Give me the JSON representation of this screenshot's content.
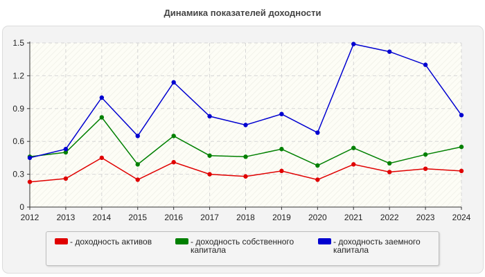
{
  "chart_data": {
    "type": "line",
    "title": "Динамика показателей доходности",
    "x": [
      "2012",
      "2013",
      "2014",
      "2015",
      "2016",
      "2017",
      "2018",
      "2019",
      "2020",
      "2021",
      "2022",
      "2023",
      "2024"
    ],
    "ylim": [
      0,
      1.5
    ],
    "yticks": [
      "0",
      "0.3",
      "0.6",
      "0.9",
      "1.2",
      "1.5"
    ],
    "grid": true,
    "legend_position": "bottom",
    "series": [
      {
        "name": "- доходность активов",
        "color": "#e00000",
        "values": [
          0.23,
          0.26,
          0.45,
          0.25,
          0.41,
          0.3,
          0.28,
          0.33,
          0.25,
          0.39,
          0.32,
          0.35,
          0.33
        ]
      },
      {
        "name": "- доходность собственного\nкапитала",
        "color": "#008000",
        "values": [
          0.46,
          0.5,
          0.82,
          0.39,
          0.65,
          0.47,
          0.46,
          0.53,
          0.38,
          0.54,
          0.4,
          0.48,
          0.55
        ]
      },
      {
        "name": "- доходность заемного\nкапитала",
        "color": "#0000d0",
        "values": [
          0.45,
          0.53,
          1.0,
          0.65,
          1.14,
          0.83,
          0.75,
          0.85,
          0.68,
          1.49,
          1.42,
          1.3,
          0.84
        ]
      }
    ]
  }
}
